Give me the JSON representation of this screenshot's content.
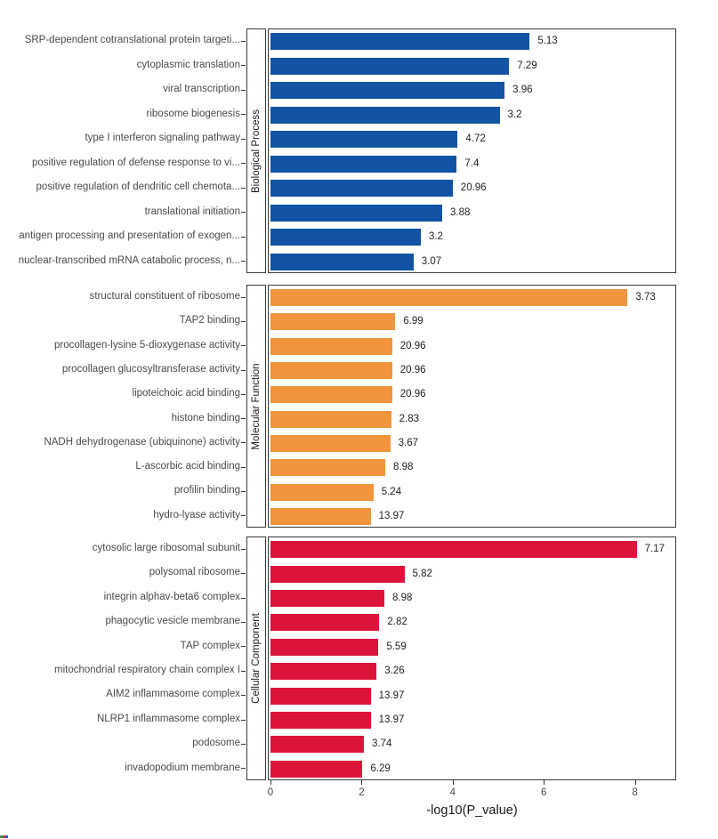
{
  "chart_meta": {
    "xlabel": "-log10(P_value)",
    "x_ticks": [
      "0",
      "2",
      "4",
      "6",
      "8"
    ],
    "x_tick_values": [
      0,
      2,
      4,
      6,
      8
    ],
    "xlim": [
      0,
      8.9
    ],
    "grid": "off",
    "legend": "none",
    "facet_layout": "three stacked horizontal-bar panels sharing one x axis",
    "colors": {
      "biological_process": "#1253A4",
      "molecular_function": "#F0953B",
      "cellular_component": "#DC143C",
      "panel_border": "#3c3c3c"
    }
  },
  "chart_data": [
    {
      "type": "bar",
      "facet": "Biological Process",
      "orientation": "horizontal",
      "color": "#1253A4",
      "categories": [
        "SRP-dependent cotranslational protein targeti...",
        "cytoplasmic translation",
        "viral transcription",
        "ribosome biogenesis",
        "type I interferon signaling pathway",
        "positive regulation of defense response to vi...",
        "positive regulation of dendritic cell chemota...",
        "translational initiation",
        "antigen processing and presentation of exogen...",
        "nuclear-transcribed mRNA catabolic process, n..."
      ],
      "x_values_neglog10_p": [
        5.69,
        5.24,
        5.14,
        5.03,
        4.11,
        4.09,
        4.0,
        3.77,
        3.3,
        3.14
      ],
      "bar_end_labels": [
        "5.13",
        "7.29",
        "3.96",
        "3.2",
        "4.72",
        "7.4",
        "20.96",
        "3.88",
        "3.2",
        "3.07"
      ]
    },
    {
      "type": "bar",
      "facet": "Molecular Function",
      "orientation": "horizontal",
      "color": "#F0953B",
      "categories": [
        "structural constituent of ribosome",
        "TAP2 binding",
        "procollagen-lysine 5-dioxygenase activity",
        "procollagen glucosyltransferase activity",
        "lipoteichoic acid binding",
        "histone binding",
        "NADH dehydrogenase (ubiquinone) activity",
        "L-ascorbic acid binding",
        "profilin binding",
        "hydro-lyase activity"
      ],
      "x_values_neglog10_p": [
        7.84,
        2.74,
        2.67,
        2.67,
        2.67,
        2.65,
        2.63,
        2.52,
        2.26,
        2.2
      ],
      "bar_end_labels": [
        "3.73",
        "6.99",
        "20.96",
        "20.96",
        "20.96",
        "2.83",
        "3.67",
        "8.98",
        "5.24",
        "13.97"
      ]
    },
    {
      "type": "bar",
      "facet": "Cellular Component",
      "orientation": "horizontal",
      "color": "#DC143C",
      "categories": [
        "cytosolic large ribosomal subunit",
        "polysomal ribosome",
        "integrin alphav-beta6 complex",
        "phagocytic vesicle membrane",
        "TAP complex",
        "mitochondrial respiratory chain complex I",
        "AIM2 inflammasome complex",
        "NLRP1 inflammasome complex",
        "podosome",
        "invadopodium membrane"
      ],
      "x_values_neglog10_p": [
        8.04,
        2.94,
        2.5,
        2.39,
        2.37,
        2.33,
        2.2,
        2.2,
        2.05,
        2.02
      ],
      "bar_end_labels": [
        "7.17",
        "5.82",
        "8.98",
        "2.82",
        "5.59",
        "3.26",
        "13.97",
        "13.97",
        "3.74",
        "6.29"
      ]
    }
  ]
}
